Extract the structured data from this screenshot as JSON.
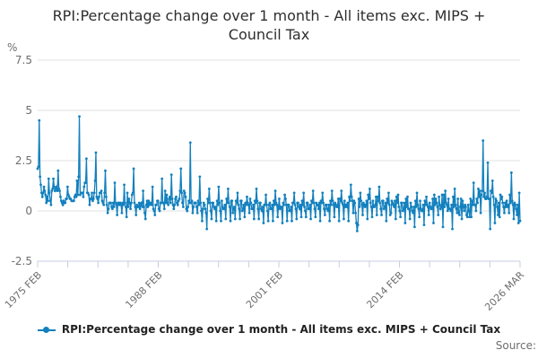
{
  "title": "RPI:Percentage change over 1 month - All items exc. MIPS + Council Tax",
  "unit_label": "%",
  "source_label": "Source:",
  "legend": {
    "marker_icon": "line-dot-marker",
    "label": "RPI:Percentage change over 1 month - All items exc. MIPS + Council Tax"
  },
  "chart_data": {
    "type": "line",
    "title": "RPI:Percentage change over 1 month - All items exc. MIPS + Council Tax",
    "xlabel": "",
    "ylabel": "%",
    "ylim": [
      -2.5,
      7.5
    ],
    "yticks": [
      7.5,
      5,
      2.5,
      0,
      -2.5
    ],
    "ytick_labels": [
      "7.5",
      "5",
      "2.5",
      "0",
      "-2.5"
    ],
    "x_start": "1975 FEB",
    "x_end": "2026 MAR",
    "frequency": "monthly",
    "xtick_labels": [
      "1975 FEB",
      "1988 FEB",
      "2001 FEB",
      "2014 FEB",
      "2026 MAR"
    ],
    "labeled_tick_indices": [
      0,
      4,
      8,
      12,
      16
    ],
    "minor_tick_count": 17,
    "grid": "horizontal",
    "legend_position": "bottom",
    "line_color": "#1380be",
    "grid_color": "#e2e2e2",
    "axis_color": "#c5cde2",
    "marker": "circle",
    "values": [
      2.1,
      2.2,
      4.5,
      1.7,
      1.3,
      0.9,
      0.7,
      0.9,
      1.2,
      1.0,
      0.8,
      0.4,
      0.7,
      0.5,
      1.6,
      0.9,
      0.5,
      0.3,
      1.0,
      1.1,
      1.6,
      1.2,
      1.0,
      1.1,
      1.2,
      1.0,
      2.0,
      1.1,
      1.0,
      0.7,
      0.5,
      0.4,
      0.3,
      0.5,
      0.4,
      0.4,
      0.6,
      0.6,
      1.2,
      0.8,
      0.7,
      0.6,
      0.6,
      0.5,
      0.5,
      0.5,
      0.5,
      0.7,
      0.8,
      0.7,
      1.5,
      0.8,
      1.7,
      4.7,
      0.8,
      0.9,
      0.9,
      0.9,
      0.7,
      1.2,
      1.4,
      1.4,
      2.6,
      0.9,
      0.9,
      0.8,
      0.3,
      0.6,
      0.6,
      0.9,
      0.5,
      0.6,
      0.9,
      1.5,
      2.9,
      0.7,
      0.6,
      0.4,
      0.7,
      0.9,
      0.9,
      1.0,
      0.5,
      0.4,
      0.3,
      0.9,
      2.0,
      0.7,
      0.3,
      -0.1,
      0.1,
      0.4,
      0.4,
      0.4,
      0.2,
      0.1,
      0.4,
      0.2,
      1.4,
      0.4,
      0.3,
      -0.2,
      0.4,
      0.4,
      0.3,
      0.4,
      0.3,
      -0.1,
      0.4,
      0.3,
      1.3,
      0.4,
      0.2,
      -0.3,
      0.9,
      0.2,
      0.6,
      0.4,
      0.1,
      0.4,
      0.8,
      0.9,
      2.1,
      0.4,
      0.2,
      -0.2,
      0.3,
      0.2,
      0.2,
      0.4,
      0.1,
      0.3,
      0.4,
      0.2,
      1.0,
      0.2,
      -0.1,
      -0.4,
      0.3,
      0.5,
      0.2,
      0.5,
      0.3,
      0.4,
      0.4,
      0.3,
      1.2,
      0.1,
      0.0,
      -0.2,
      0.3,
      0.3,
      0.5,
      0.5,
      0.1,
      0.0,
      0.4,
      0.4,
      1.6,
      0.4,
      0.4,
      0.1,
      1.0,
      0.4,
      0.8,
      0.4,
      0.3,
      0.6,
      0.7,
      0.4,
      1.8,
      0.6,
      0.3,
      0.1,
      0.3,
      0.6,
      0.7,
      0.4,
      0.3,
      0.5,
      0.6,
      1.0,
      2.1,
      0.9,
      0.4,
      0.2,
      1.0,
      0.9,
      0.7,
      0.1,
      0.0,
      0.2,
      0.5,
      0.4,
      3.4,
      0.4,
      0.5,
      -0.1,
      0.2,
      0.4,
      0.4,
      0.4,
      0.2,
      -0.1,
      0.5,
      0.3,
      1.7,
      0.4,
      0.0,
      -0.5,
      0.1,
      0.4,
      0.3,
      0.1,
      -0.1,
      -0.9,
      0.6,
      0.4,
      1.1,
      0.4,
      0.0,
      -0.4,
      0.4,
      0.4,
      0.2,
      0.1,
      0.2,
      -0.5,
      0.5,
      0.3,
      1.2,
      0.4,
      0.0,
      -0.5,
      0.5,
      0.2,
      0.1,
      0.1,
      0.3,
      -0.4,
      0.6,
      0.4,
      1.1,
      0.4,
      0.2,
      -0.5,
      0.5,
      0.5,
      -0.1,
      0.1,
      0.2,
      -0.4,
      0.5,
      0.4,
      0.9,
      0.3,
      0.1,
      -0.4,
      0.5,
      0.5,
      0.0,
      0.1,
      0.3,
      -0.3,
      0.4,
      0.3,
      0.7,
      0.4,
      0.3,
      -0.1,
      0.6,
      0.4,
      0.1,
      0.1,
      0.3,
      -0.4,
      0.5,
      0.4,
      1.1,
      0.5,
      0.1,
      -0.4,
      0.4,
      0.4,
      0.1,
      0.0,
      0.2,
      -0.6,
      0.3,
      0.3,
      0.8,
      0.3,
      0.0,
      -0.5,
      0.3,
      0.4,
      0.1,
      0.1,
      0.3,
      -0.5,
      0.5,
      0.3,
      1.0,
      0.4,
      0.3,
      -0.3,
      0.2,
      0.6,
      0.1,
      0.2,
      0.2,
      -0.6,
      0.4,
      0.3,
      0.8,
      0.6,
      0.3,
      -0.5,
      0.3,
      0.3,
      0.0,
      0.0,
      0.2,
      -0.5,
      0.4,
      0.4,
      0.9,
      0.3,
      0.1,
      -0.4,
      0.4,
      0.4,
      0.2,
      0.1,
      0.3,
      -0.3,
      0.5,
      0.3,
      0.9,
      0.2,
      0.0,
      -0.3,
      0.4,
      0.4,
      0.1,
      0.1,
      0.3,
      -0.4,
      0.5,
      0.4,
      1.0,
      0.4,
      0.1,
      -0.3,
      0.4,
      0.3,
      0.3,
      0.1,
      0.4,
      -0.5,
      0.5,
      0.4,
      0.9,
      0.4,
      0.1,
      -0.2,
      0.3,
      0.3,
      0.1,
      0.0,
      0.3,
      -0.5,
      0.5,
      0.3,
      1.0,
      0.5,
      0.3,
      -0.3,
      0.4,
      0.3,
      0.2,
      0.2,
      0.6,
      -0.5,
      0.6,
      0.5,
      1.0,
      0.4,
      0.3,
      -0.4,
      0.5,
      0.2,
      0.3,
      0.2,
      0.4,
      -0.5,
      0.7,
      0.5,
      1.3,
      0.7,
      0.5,
      -0.1,
      0.5,
      0.4,
      -0.1,
      -0.6,
      -1.0,
      -0.7,
      0.6,
      0.2,
      0.9,
      0.5,
      0.3,
      -0.2,
      0.4,
      0.3,
      0.2,
      0.3,
      0.5,
      -0.4,
      0.8,
      0.6,
      1.1,
      0.4,
      0.2,
      -0.3,
      0.5,
      0.2,
      0.2,
      0.3,
      0.7,
      -0.2,
      0.7,
      0.5,
      1.2,
      0.4,
      0.1,
      -0.2,
      0.5,
      0.5,
      0.1,
      0.2,
      0.4,
      -0.5,
      0.6,
      0.4,
      0.9,
      0.3,
      -0.2,
      -0.1,
      0.5,
      0.4,
      0.3,
      0.2,
      0.5,
      -0.4,
      0.7,
      0.4,
      0.8,
      0.2,
      0.0,
      -0.3,
      0.4,
      0.4,
      0.0,
      0.1,
      0.4,
      -0.6,
      0.6,
      0.2,
      0.7,
      0.1,
      0.1,
      -0.4,
      0.4,
      0.2,
      0.0,
      -0.1,
      0.2,
      -0.8,
      0.5,
      0.2,
      0.9,
      0.3,
      0.1,
      -0.3,
      0.5,
      0.1,
      0.0,
      0.0,
      0.3,
      -0.7,
      0.5,
      0.3,
      0.7,
      0.3,
      0.2,
      -0.2,
      0.4,
      0.2,
      0.1,
      0.1,
      0.6,
      -0.6,
      0.8,
      0.3,
      0.6,
      0.4,
      0.2,
      -0.2,
      0.7,
      0.3,
      0.1,
      0.2,
      0.8,
      -0.8,
      0.8,
      0.2,
      1.0,
      0.4,
      0.3,
      0.0,
      0.6,
      0.1,
      0.1,
      0.0,
      0.3,
      -0.9,
      0.7,
      0.2,
      1.1,
      0.3,
      0.1,
      -0.1,
      0.6,
      -0.1,
      -0.2,
      0.2,
      0.6,
      -0.4,
      0.5,
      0.2,
      0.0,
      0.3,
      0.2,
      -0.2,
      -0.3,
      0.3,
      0.0,
      -0.3,
      0.6,
      -0.3,
      0.5,
      0.3,
      1.4,
      0.3,
      0.3,
      0.0,
      0.6,
      0.4,
      1.1,
      0.7,
      1.0,
      -0.1,
      0.8,
      1.0,
      3.5,
      0.7,
      0.9,
      0.6,
      0.6,
      0.7,
      2.4,
      0.6,
      0.6,
      -0.9,
      1.0,
      0.9,
      1.5,
      0.7,
      0.3,
      -0.6,
      0.6,
      0.5,
      0.2,
      -0.2,
      0.4,
      -0.3,
      0.8,
      0.6,
      0.7,
      0.4,
      0.2,
      -0.1,
      0.4,
      0.2,
      0.5,
      0.2,
      0.3,
      -0.1,
      0.8,
      0.4,
      1.9,
      0.5,
      0.3,
      -0.4,
      0.4,
      0.3,
      0.1,
      -0.2,
      0.3,
      -0.6,
      0.9,
      -0.5
    ]
  }
}
